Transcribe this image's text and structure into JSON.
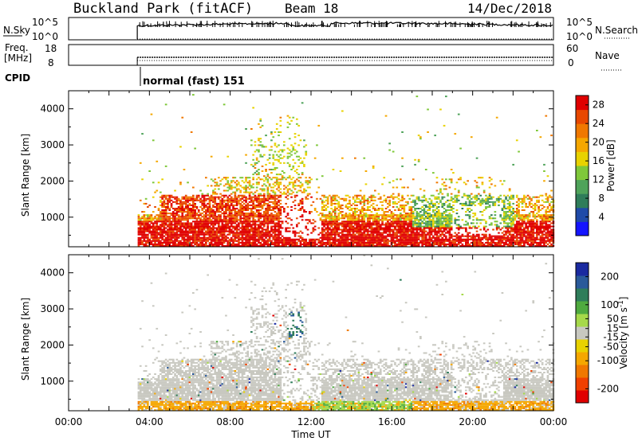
{
  "header": {
    "site": "Buckland Park (fitACF)",
    "beam": "Beam 18",
    "date": "14/Dec/2018"
  },
  "noise_panel": {
    "left_label": "N.Sky",
    "left_ticks": [
      "10^5",
      "10^0"
    ],
    "right_label": "N.Search",
    "right_ticks": [
      "10^5",
      "10^0"
    ]
  },
  "freq_panel": {
    "left_label_1": "Freq.",
    "left_label_2": "[MHz]",
    "left_ticks": [
      "18",
      "8"
    ],
    "right_label": "Nave",
    "right_ticks": [
      "60",
      "0"
    ]
  },
  "cpid": {
    "label": "CPID",
    "value": "normal (fast) 151"
  },
  "colors": {
    "power_scale": [
      "#1414ff",
      "#1f4aa8",
      "#2f7d5a",
      "#4fa35a",
      "#7fc83a",
      "#e8d200",
      "#f5a700",
      "#f07800",
      "#e84800",
      "#e00000"
    ],
    "velocity_scale": [
      "#e00000",
      "#f04000",
      "#f07800",
      "#f5a700",
      "#e8d200",
      "#c8c8c0",
      "#a6d94a",
      "#4faa3f",
      "#2f7d5a",
      "#2a5a9a",
      "#1a2aa0"
    ],
    "ground_scatter": "#c8c8c0"
  },
  "chart_data": [
    {
      "type": "heatmap",
      "name": "power",
      "ylabel": "Slant Range [km]",
      "xlabel": "",
      "x_ticks": [
        "00:00",
        "04:00",
        "08:00",
        "12:00",
        "16:00",
        "20:00",
        "00:00"
      ],
      "x_range_hours": [
        0,
        24
      ],
      "y_ticks": [
        1000,
        2000,
        3000,
        4000
      ],
      "ylim": [
        180,
        4500
      ],
      "colorbar": {
        "label": "Power [dB]",
        "ticks": [
          4,
          8,
          12,
          16,
          20,
          24,
          28
        ],
        "range": [
          0,
          30
        ]
      },
      "data_start_hour": 3.4
    },
    {
      "type": "heatmap",
      "name": "velocity",
      "ylabel": "Slant Range [km]",
      "xlabel": "Time UT",
      "x_ticks": [
        "00:00",
        "04:00",
        "08:00",
        "12:00",
        "16:00",
        "20:00",
        "00:00"
      ],
      "x_range_hours": [
        0,
        24
      ],
      "y_ticks": [
        1000,
        2000,
        3000,
        4000
      ],
      "ylim": [
        180,
        4500
      ],
      "colorbar": {
        "label": "Velocity [m s",
        "label_exponent": "-1",
        "label_close": "]",
        "ticks": [
          200,
          100,
          50,
          15,
          -15,
          -50,
          -100,
          -200
        ],
        "range": [
          -250,
          250
        ]
      },
      "data_start_hour": 3.4
    }
  ]
}
